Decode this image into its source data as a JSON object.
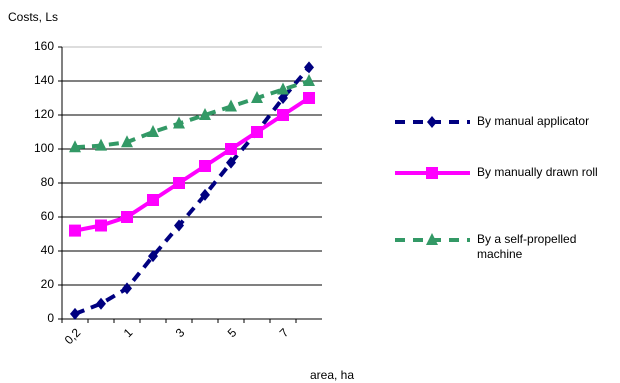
{
  "chart_data": {
    "type": "line",
    "ylabel": "Costs, Ls",
    "xlabel": "area, ha",
    "categories": [
      "0,2",
      null,
      "1",
      null,
      "3",
      null,
      "5",
      null,
      "7",
      null
    ],
    "series": [
      {
        "name": "By manual applicator",
        "color": "#000080",
        "dashed": true,
        "marker": "diamond",
        "values": [
          3,
          9,
          18,
          37,
          55,
          73,
          92,
          110,
          130,
          148
        ]
      },
      {
        "name": "By manually drawn roll",
        "color": "#ff00ff",
        "dashed": false,
        "marker": "square",
        "values": [
          52,
          55,
          60,
          70,
          80,
          90,
          100,
          110,
          120,
          130
        ]
      },
      {
        "name": "By a self-propelled machine",
        "color": "#339966",
        "dashed": true,
        "marker": "triangle",
        "values": [
          101,
          102,
          104,
          110,
          115,
          120,
          125,
          130,
          135,
          140
        ]
      }
    ],
    "ylim": [
      0,
      160
    ],
    "yticks": [
      0,
      20,
      40,
      60,
      80,
      100,
      120,
      140,
      160
    ],
    "grid": true
  }
}
